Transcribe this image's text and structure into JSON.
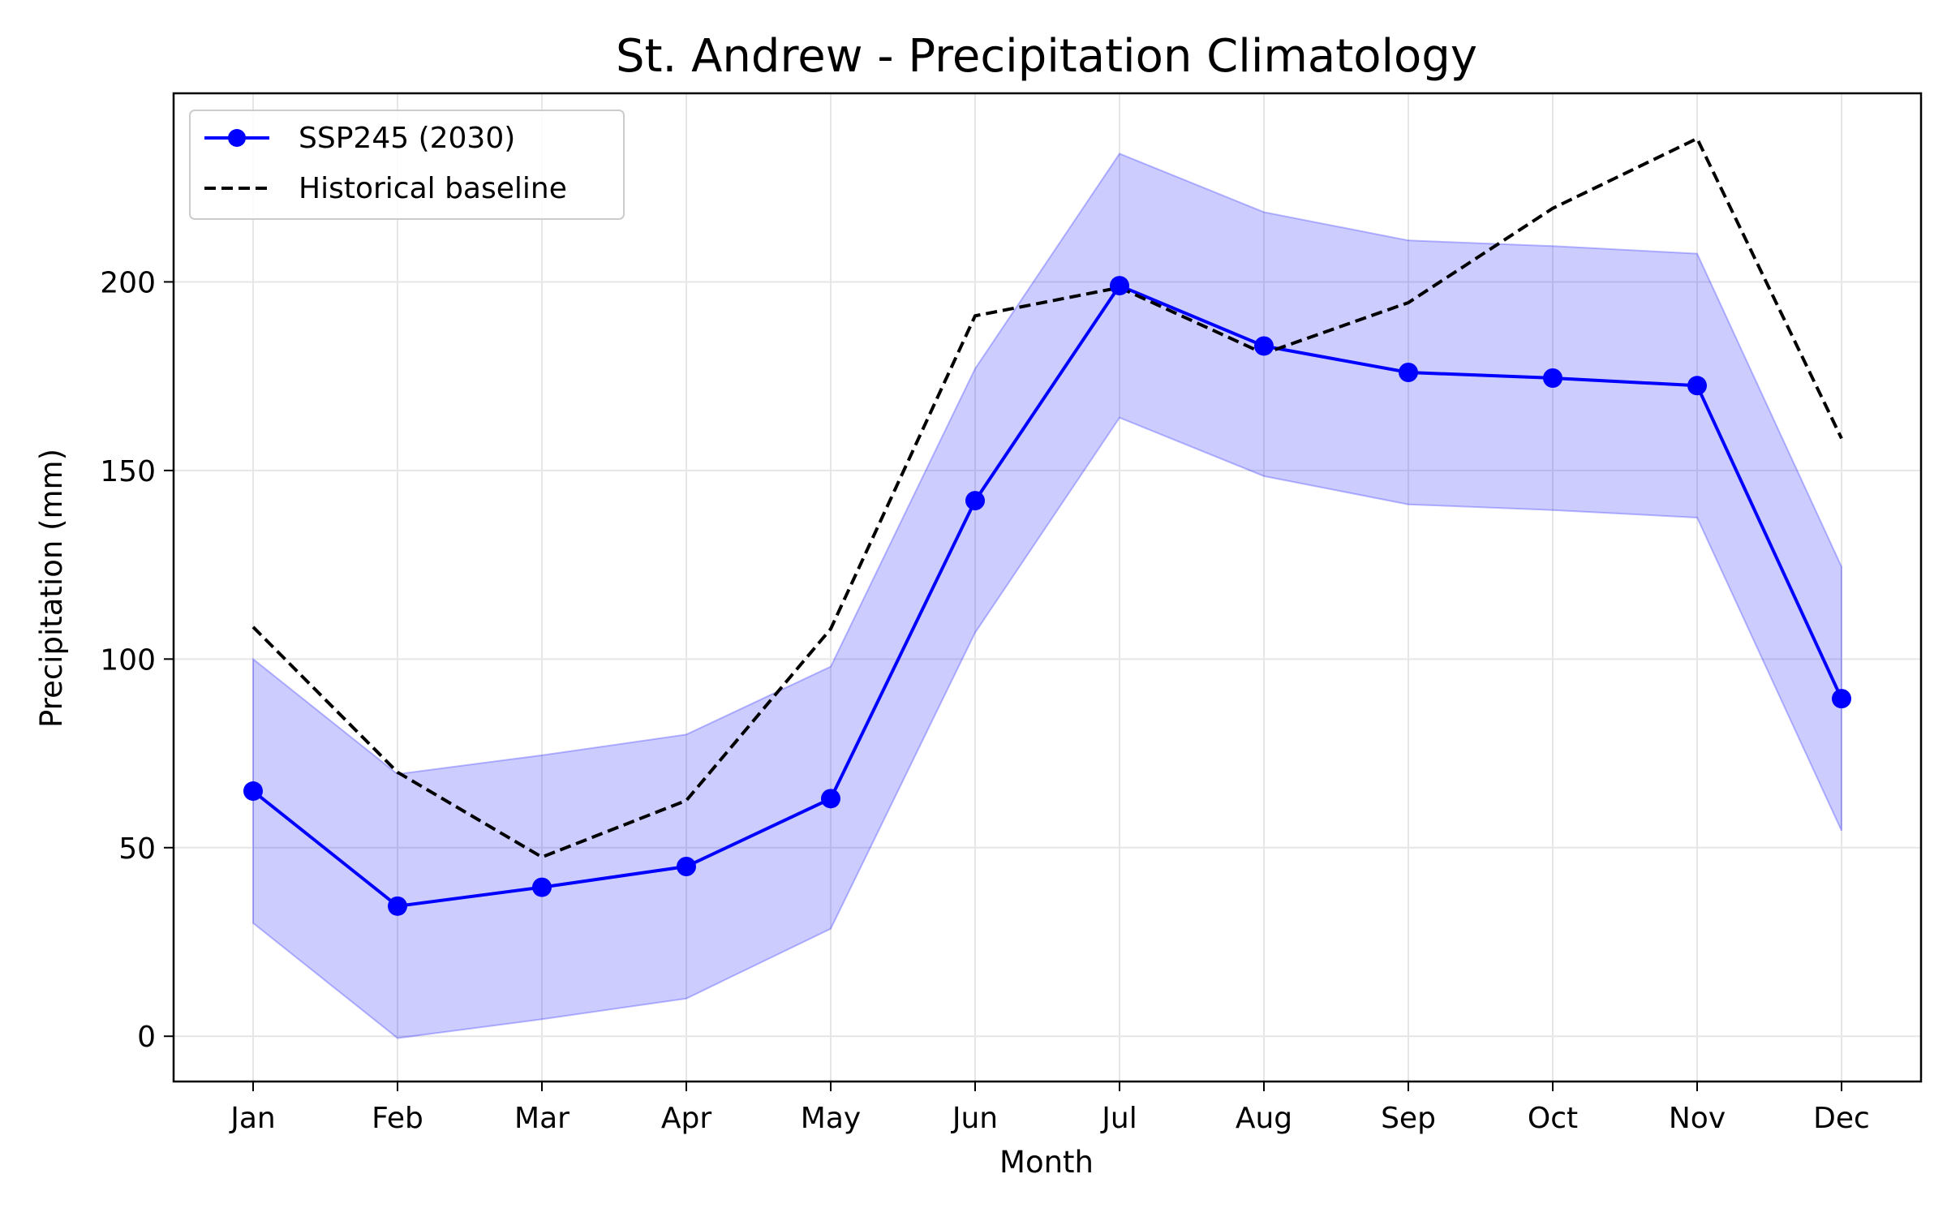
{
  "chart_data": {
    "type": "line",
    "title": "St. Andrew - Precipitation Climatology",
    "xlabel": "Month",
    "ylabel": "Precipitation (mm)",
    "categories": [
      "Jan",
      "Feb",
      "Mar",
      "Apr",
      "May",
      "Jun",
      "Jul",
      "Aug",
      "Sep",
      "Oct",
      "Nov",
      "Dec"
    ],
    "ylim": [
      -12,
      250
    ],
    "yticks": [
      "0",
      "50",
      "100",
      "150",
      "200"
    ],
    "grid": true,
    "legend_position": "top-left",
    "series": [
      {
        "name": "SSP245 (2030)",
        "style": "solid line with circle markers",
        "color": "#0000ff",
        "values": [
          65,
          34.5,
          39.5,
          45,
          63,
          142,
          199,
          183,
          176,
          174.5,
          172.5,
          89.5
        ]
      },
      {
        "name": "Historical baseline",
        "style": "dashed line",
        "color": "#000000",
        "values": [
          108.5,
          70,
          47.5,
          62.5,
          108,
          191,
          198.5,
          181,
          194.5,
          219.5,
          238,
          158.5
        ]
      }
    ],
    "band": {
      "color": "#0000ff",
      "opacity": 0.2,
      "lower": [
        30,
        -0.5,
        4.5,
        10,
        28.5,
        107,
        164,
        148.5,
        141,
        139.5,
        137.5,
        54.5
      ],
      "upper": [
        100,
        69.5,
        74.5,
        80,
        98,
        177,
        234,
        218.5,
        211,
        209.5,
        207.5,
        124.5
      ]
    }
  }
}
